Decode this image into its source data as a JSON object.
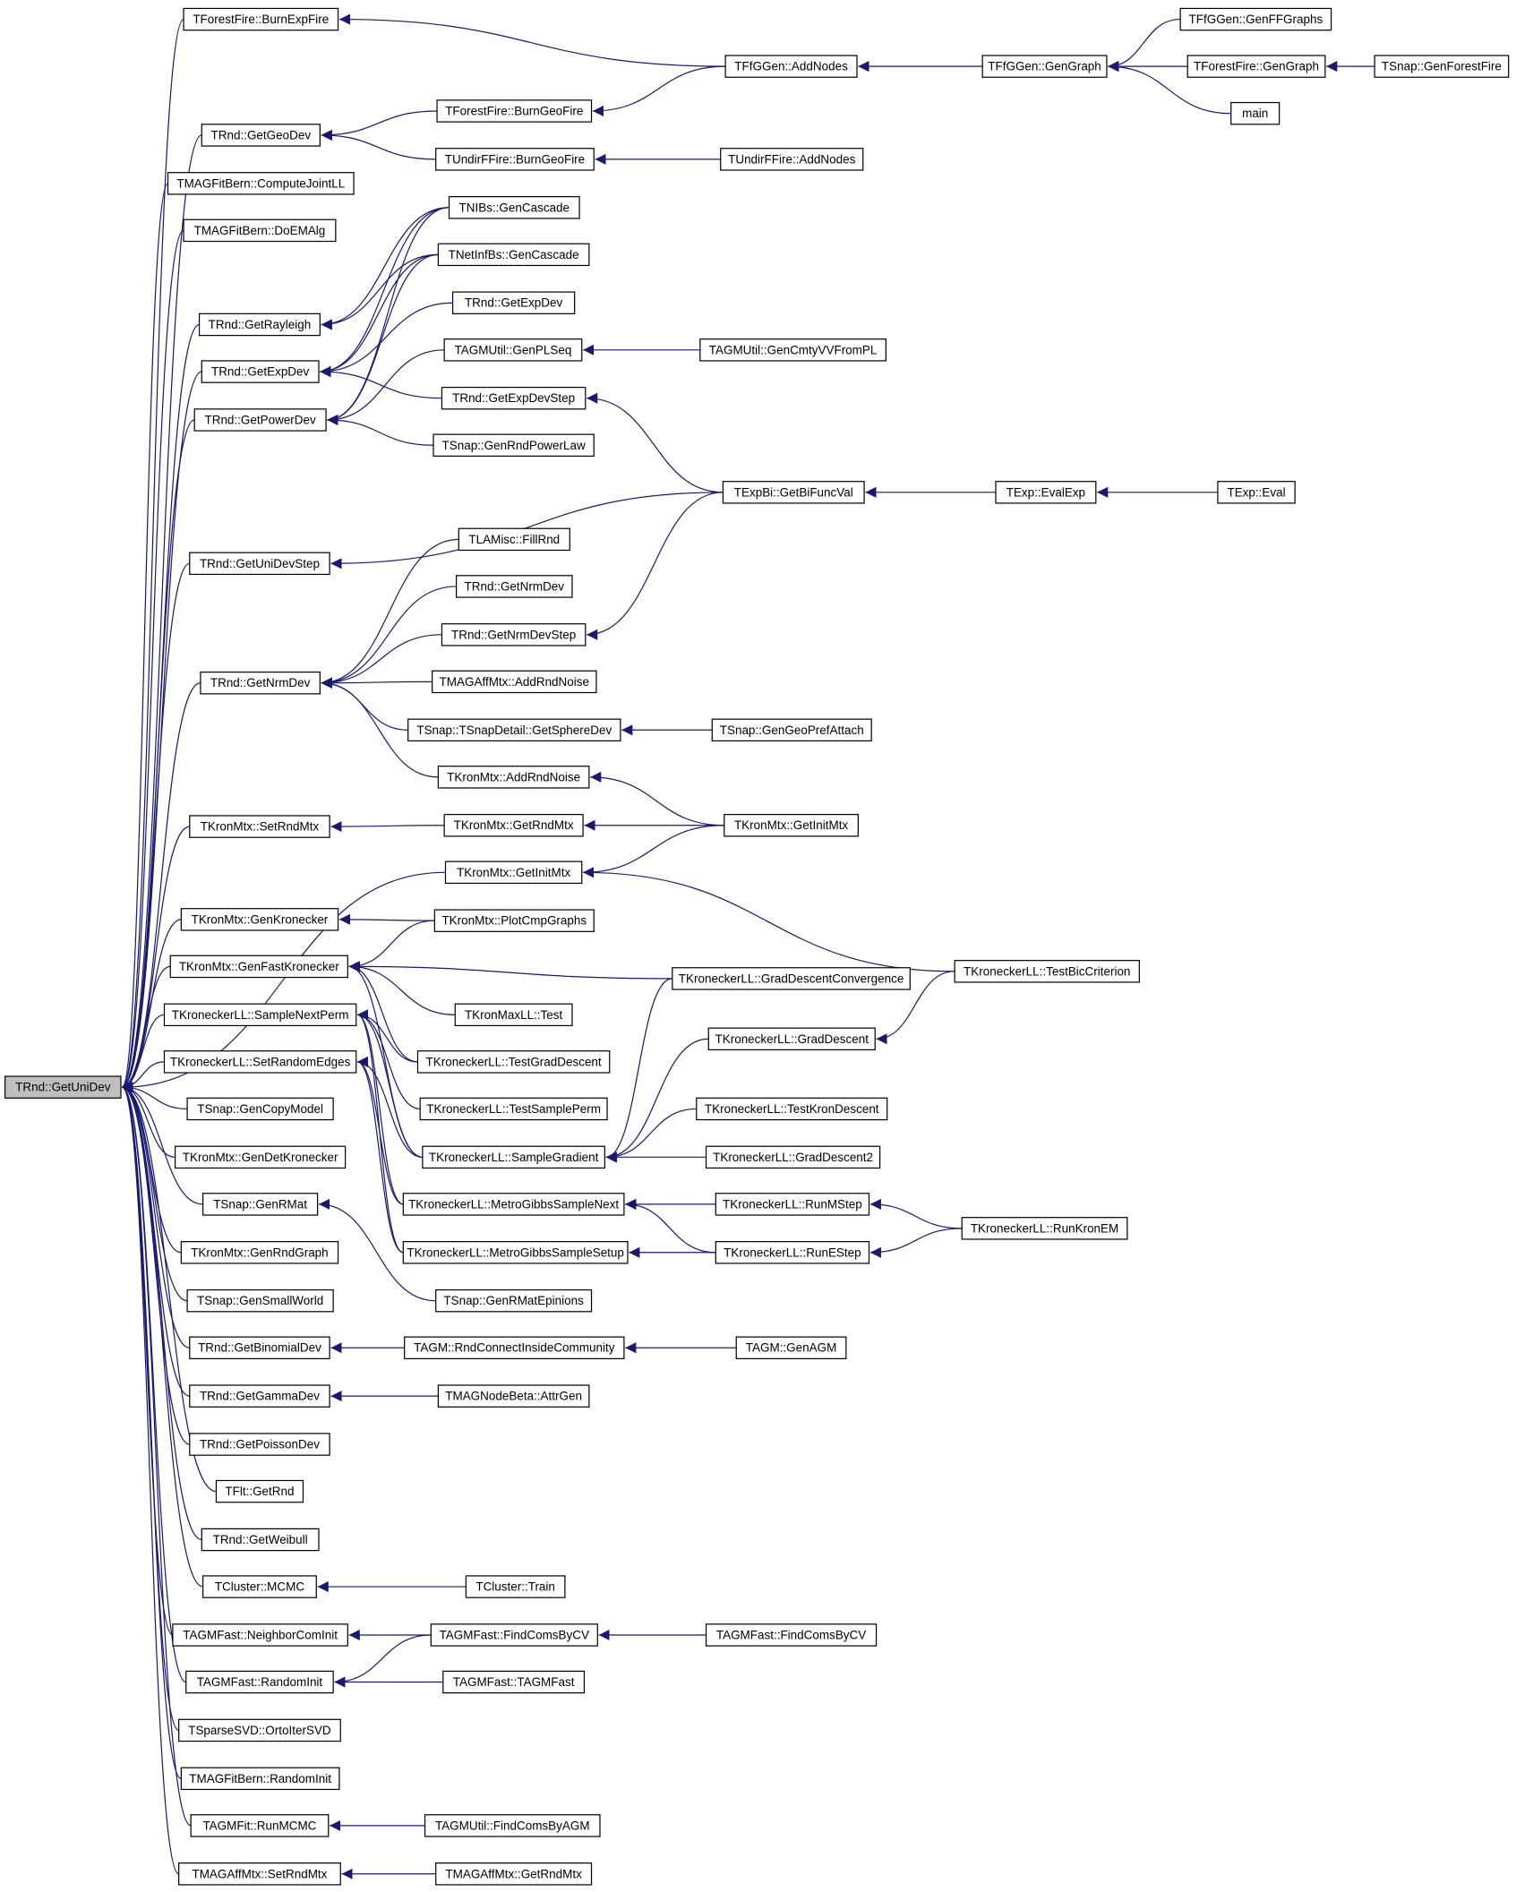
{
  "nodes": [
    {
      "label": "TRnd::GetUniDev"
    },
    {
      "label": "TForestFire::BurnExpFire"
    },
    {
      "label": "TRnd::GetGeoDev"
    },
    {
      "label": "TMAGFitBern::ComputeJointLL"
    },
    {
      "label": "TMAGFitBern::DoEMAlg"
    },
    {
      "label": "TRnd::GetRayleigh"
    },
    {
      "label": "TRnd::GetExpDev"
    },
    {
      "label": "TRnd::GetPowerDev"
    },
    {
      "label": "TRnd::GetUniDevStep"
    },
    {
      "label": "TRnd::GetNrmDev"
    },
    {
      "label": "TKronMtx::SetRndMtx"
    },
    {
      "label": "TKronMtx::GenKronecker"
    },
    {
      "label": "TKronMtx::GenFastKronecker"
    },
    {
      "label": "TKroneckerLL::SampleNextPerm"
    },
    {
      "label": "TKroneckerLL::SetRandomEdges"
    },
    {
      "label": "TSnap::GenCopyModel"
    },
    {
      "label": "TKronMtx::GenDetKronecker"
    },
    {
      "label": "TSnap::GenRMat"
    },
    {
      "label": "TKronMtx::GenRndGraph"
    },
    {
      "label": "TSnap::GenSmallWorld"
    },
    {
      "label": "TRnd::GetBinomialDev"
    },
    {
      "label": "TRnd::GetGammaDev"
    },
    {
      "label": "TRnd::GetPoissonDev"
    },
    {
      "label": "TFlt::GetRnd"
    },
    {
      "label": "TRnd::GetWeibull"
    },
    {
      "label": "TCluster::MCMC"
    },
    {
      "label": "TAGMFast::NeighborComInit"
    },
    {
      "label": "TAGMFast::RandomInit"
    },
    {
      "label": "TSparseSVD::OrtoIterSVD"
    },
    {
      "label": "TMAGFitBern::RandomInit"
    },
    {
      "label": "TAGMFit::RunMCMC"
    },
    {
      "label": "TMAGAffMtx::SetRndMtx"
    },
    {
      "label": "TFfGGen::AddNodes"
    },
    {
      "label": "TForestFire::BurnGeoFire"
    },
    {
      "label": "TUndirFFire::BurnGeoFire"
    },
    {
      "label": "TNIBs::GenCascade"
    },
    {
      "label": "TNetInfBs::GenCascade"
    },
    {
      "label": "TRnd::GetExpDev"
    },
    {
      "label": "TAGMUtil::GenPLSeq"
    },
    {
      "label": "TRnd::GetExpDevStep"
    },
    {
      "label": "TSnap::GenRndPowerLaw"
    },
    {
      "label": "TLAMisc::FillRnd"
    },
    {
      "label": "TRnd::GetNrmDev"
    },
    {
      "label": "TRnd::GetNrmDevStep"
    },
    {
      "label": "TMAGAffMtx::AddRndNoise"
    },
    {
      "label": "TSnap::TSnapDetail::GetSphereDev"
    },
    {
      "label": "TKronMtx::AddRndNoise"
    },
    {
      "label": "TKronMtx::GetRndMtx"
    },
    {
      "label": "TKronMtx::GetInitMtx"
    },
    {
      "label": "TKronMtx::PlotCmpGraphs"
    },
    {
      "label": "TKronMaxLL::Test"
    },
    {
      "label": "TKroneckerLL::TestGradDescent"
    },
    {
      "label": "TKroneckerLL::TestSamplePerm"
    },
    {
      "label": "TKroneckerLL::SampleGradient"
    },
    {
      "label": "TKroneckerLL::MetroGibbsSampleNext"
    },
    {
      "label": "TKroneckerLL::MetroGibbsSampleSetup"
    },
    {
      "label": "TSnap::GenRMatEpinions"
    },
    {
      "label": "TAGM::RndConnectInsideCommunity"
    },
    {
      "label": "TMAGNodeBeta::AttrGen"
    },
    {
      "label": "TCluster::Train"
    },
    {
      "label": "TAGMFast::FindComsByCV"
    },
    {
      "label": "TAGMFast::TAGMFast"
    },
    {
      "label": "TAGMUtil::FindComsByAGM"
    },
    {
      "label": "TMAGAffMtx::GetRndMtx"
    },
    {
      "label": "TFfGGen::GenGraph"
    },
    {
      "label": "TUndirFFire::AddNodes"
    },
    {
      "label": "TAGMUtil::GenCmtyVVFromPL"
    },
    {
      "label": "TExpBi::GetBiFuncVal"
    },
    {
      "label": "TSnap::GenGeoPrefAttach"
    },
    {
      "label": "TKronMtx::GetInitMtx"
    },
    {
      "label": "TKroneckerLL::GradDescentConvergence"
    },
    {
      "label": "TKroneckerLL::GradDescent"
    },
    {
      "label": "TKroneckerLL::TestKronDescent"
    },
    {
      "label": "TKroneckerLL::GradDescent2"
    },
    {
      "label": "TKroneckerLL::RunMStep"
    },
    {
      "label": "TKroneckerLL::RunEStep"
    },
    {
      "label": "TAGM::GenAGM"
    },
    {
      "label": "TAGMFast::FindComsByCV"
    },
    {
      "label": "TFfGGen::GenFFGraphs"
    },
    {
      "label": "TForestFire::GenGraph"
    },
    {
      "label": "main"
    },
    {
      "label": "TExp::EvalExp"
    },
    {
      "label": "TKroneckerLL::TestBicCriterion"
    },
    {
      "label": "TKroneckerLL::RunKronEM"
    },
    {
      "label": "TSnap::GenForestFire"
    },
    {
      "label": "TExp::Eval"
    }
  ]
}
